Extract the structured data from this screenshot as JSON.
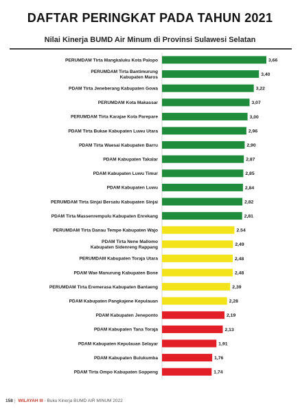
{
  "header": {
    "title": "DAFTAR PERINGKAT PADA TAHUN 2021"
  },
  "chart_data": {
    "type": "bar",
    "orientation": "horizontal",
    "title": "Nilai Kinerja BUMD Air Minum di Provinsi Sulawesi Selatan",
    "xlabel": "",
    "ylabel": "",
    "xlim": [
      0,
      3.66
    ],
    "grid": false,
    "legend": "none",
    "categories": [
      [
        "PERUMDAM Tirta Mangkaluku Kota Palopo"
      ],
      [
        "PERUMDAM Tirta Bantimurung",
        "Kabupaten Maros"
      ],
      [
        "PDAM Tirta Jeneberang Kabupaten Gowa"
      ],
      [
        "PERUMDAM Kota Makassar"
      ],
      [
        "PERUMDAM Tirta Karajae Kota Parepare"
      ],
      [
        "PDAM Tirta Bukae Kabupaten Luwu Utara"
      ],
      [
        "PDAM Tirta Waesai Kabupaten Barru"
      ],
      [
        "PDAM Kabupaten Takalar"
      ],
      [
        "PDAM Kabupaten Luwu Timur"
      ],
      [
        "PDAM Kabupaten Luwu"
      ],
      [
        "PERUMDAM Tirta Sinjai Bersatu Kabupaten Sinjai"
      ],
      [
        "PDAM Tirta Massenrempulu Kabupaten Enrekang"
      ],
      [
        "PERUMDAM Tirta Danau Tempe Kabupaten Wajo"
      ],
      [
        "PDAM Tirta Nene Mallomo",
        "Kabupaten Sidenreng Rappang"
      ],
      [
        "PERUMDAM Kabupaten Toraja Utara"
      ],
      [
        "PDAM Wae Manurung Kabupaten Bone"
      ],
      [
        "PERUMDAM Tirta Eremerasa Kabupaten Bantaeng"
      ],
      [
        "PDAM Kabupaten Pangkajene Kepulauan"
      ],
      [
        "PDAM Kabupaten Jeneponto"
      ],
      [
        "PDAM Kabupaten Tana Toraja"
      ],
      [
        "PDAM Kabupaten Kepulauan Selayar"
      ],
      [
        "PDAM Kabupaten Bulukumba"
      ],
      [
        "PDAM Tirta Ompo Kabupaten Soppeng"
      ]
    ],
    "values": [
      3.66,
      3.4,
      3.22,
      3.07,
      3.0,
      2.96,
      2.9,
      2.87,
      2.85,
      2.84,
      2.82,
      2.81,
      2.54,
      2.49,
      2.48,
      2.48,
      2.39,
      2.28,
      2.19,
      2.13,
      1.91,
      1.76,
      1.74
    ],
    "value_labels": [
      "3,66",
      "3,40",
      "3,22",
      "3,07",
      "3,00",
      "2,96",
      "2,90",
      "2,87",
      "2,85",
      "2,84",
      "2,82",
      "2,81",
      "2.54",
      "2,49",
      "2,48",
      "2,48",
      "2,39",
      "2,28",
      "2,19",
      "2,13",
      "1,91",
      "1,76",
      "1,74"
    ],
    "colors": [
      "green",
      "green",
      "green",
      "green",
      "green",
      "green",
      "green",
      "green",
      "green",
      "green",
      "green",
      "green",
      "yellow",
      "yellow",
      "yellow",
      "yellow",
      "yellow",
      "yellow",
      "red",
      "red",
      "red",
      "red",
      "red"
    ],
    "palette": {
      "green": "#1e8c3a",
      "yellow": "#f2e31a",
      "red": "#e21f26"
    }
  },
  "footer": {
    "page_number": "158",
    "region": "WILAYAH III",
    "text": "- Buku Kinerja BUMD AIR MINUM 2022"
  }
}
